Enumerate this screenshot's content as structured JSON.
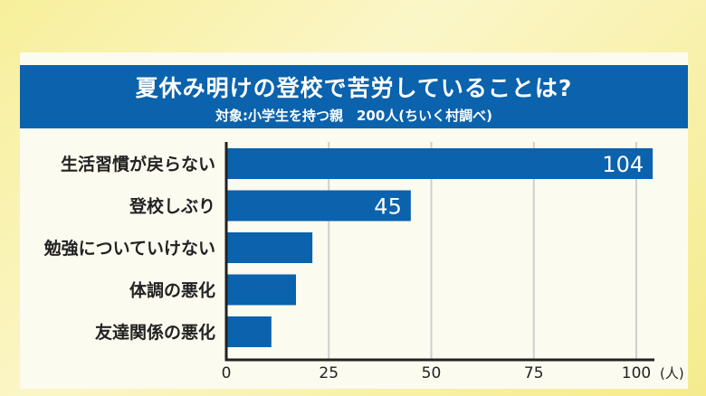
{
  "chart_data": {
    "type": "bar",
    "orientation": "horizontal",
    "title": "夏休み明けの登校で苦労していることは?",
    "subtitle": "対象:小学生を持つ親　200人(ちいく村調べ)",
    "categories": [
      "生活習慣が戻らない",
      "登校しぶり",
      "勉強についていけない",
      "体調の悪化",
      "友達関係の悪化"
    ],
    "values": [
      104,
      45,
      21,
      17,
      11
    ],
    "data_labels": [
      "104",
      "45",
      null,
      null,
      null
    ],
    "xlim": [
      0,
      100
    ],
    "xticks": [
      "0",
      "25",
      "50",
      "75",
      "100"
    ],
    "unit_label": "(人)",
    "grid": true,
    "bar_color": "#0b62ad"
  }
}
